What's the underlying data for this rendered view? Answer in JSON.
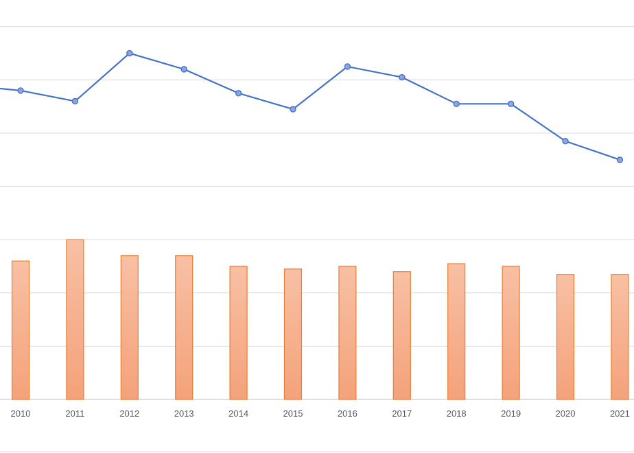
{
  "chart_data": {
    "type": "bar",
    "categories": [
      "2010",
      "2011",
      "2012",
      "2013",
      "2014",
      "2015",
      "2016",
      "2017",
      "2018",
      "2019",
      "2020",
      "2021"
    ],
    "series": [
      {
        "type": "bar",
        "values": [
          2.6,
          3.0,
          2.7,
          2.7,
          2.5,
          2.45,
          2.5,
          2.4,
          2.55,
          2.5,
          2.35,
          2.35
        ],
        "color": "#ed7d31",
        "fill_top": "#f8c0a4",
        "fill_bottom": "#f4a27a"
      },
      {
        "type": "line",
        "values": [
          5.8,
          5.6,
          6.5,
          6.2,
          5.75,
          5.45,
          6.25,
          6.05,
          5.55,
          5.55,
          4.85,
          4.5
        ],
        "color": "#4472c4",
        "point_color": "#8fa4e0",
        "leading_value": 5.9
      }
    ],
    "xlabel": "",
    "ylabel": "",
    "ylim": [
      0,
      7.5
    ],
    "grid": true,
    "legend": "none"
  }
}
